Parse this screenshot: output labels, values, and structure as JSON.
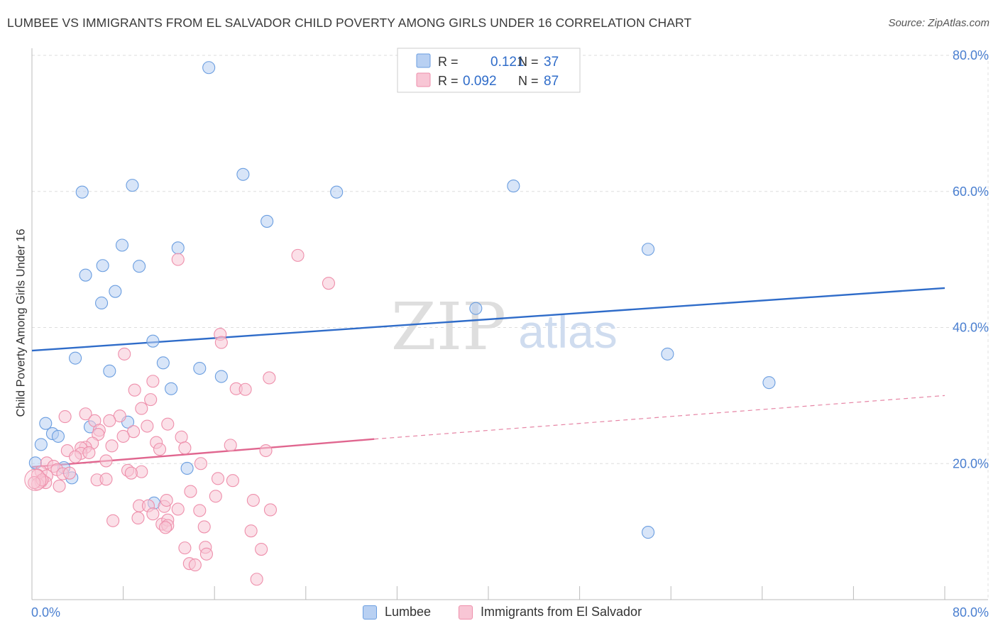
{
  "title": "LUMBEE VS IMMIGRANTS FROM EL SALVADOR CHILD POVERTY AMONG GIRLS UNDER 16 CORRELATION CHART",
  "source": "Source: ZipAtlas.com",
  "watermark": {
    "zip": "ZIP",
    "atlas": "atlas"
  },
  "chart_data": {
    "type": "scatter",
    "title": "LUMBEE VS IMMIGRANTS FROM EL SALVADOR CHILD POVERTY AMONG GIRLS UNDER 16 CORRELATION CHART",
    "xlabel": "",
    "ylabel": "Child Poverty Among Girls Under 16",
    "xlim": [
      0,
      80
    ],
    "ylim": [
      0,
      80
    ],
    "x_tick_labels": [
      "0.0%",
      "80.0%"
    ],
    "y_tick_labels": [
      "80.0%",
      "60.0%",
      "40.0%",
      "20.0%"
    ],
    "y_ticks": [
      80,
      60,
      40,
      20
    ],
    "grid": true,
    "legend_position": "top-center",
    "stats": [
      {
        "r_label": "R =",
        "r_value": "0.121",
        "n_label": "N =",
        "n_value": "37"
      },
      {
        "r_label": "R =",
        "r_value": "0.092",
        "n_label": "N =",
        "n_value": "87"
      }
    ],
    "series": [
      {
        "name": "Lumbee",
        "color": "#6b9ee0",
        "fill": "#b8d0f2",
        "trend": {
          "x": [
            0,
            80
          ],
          "y": [
            36.6,
            45.8
          ],
          "style": "solid",
          "color": "#2f6cc9"
        },
        "points": [
          [
            15.5,
            78.2
          ],
          [
            4.4,
            59.9
          ],
          [
            8.8,
            60.9
          ],
          [
            18.5,
            62.5
          ],
          [
            26.7,
            59.9
          ],
          [
            42.2,
            60.8
          ],
          [
            20.6,
            55.6
          ],
          [
            7.9,
            52.1
          ],
          [
            12.8,
            51.7
          ],
          [
            9.4,
            49.0
          ],
          [
            6.2,
            49.1
          ],
          [
            4.7,
            47.7
          ],
          [
            7.3,
            45.3
          ],
          [
            6.1,
            43.6
          ],
          [
            54.0,
            51.5
          ],
          [
            38.9,
            42.8
          ],
          [
            10.6,
            38.0
          ],
          [
            3.8,
            35.5
          ],
          [
            11.5,
            34.8
          ],
          [
            6.8,
            33.6
          ],
          [
            14.7,
            34.0
          ],
          [
            16.6,
            32.8
          ],
          [
            12.2,
            31.0
          ],
          [
            55.7,
            36.1
          ],
          [
            64.6,
            31.9
          ],
          [
            1.2,
            25.9
          ],
          [
            5.1,
            25.4
          ],
          [
            8.4,
            26.1
          ],
          [
            1.8,
            24.4
          ],
          [
            2.3,
            24.0
          ],
          [
            0.8,
            22.8
          ],
          [
            0.3,
            20.1
          ],
          [
            2.8,
            19.4
          ],
          [
            13.6,
            19.3
          ],
          [
            3.5,
            17.9
          ],
          [
            10.7,
            14.2
          ],
          [
            54.0,
            9.9
          ]
        ]
      },
      {
        "name": "Immigrants from El Salvador",
        "color": "#ee8fab",
        "fill": "#f8c6d5",
        "trend": {
          "x": [
            0,
            30
          ],
          "y": [
            19.5,
            23.6
          ],
          "style": "solid",
          "color": "#e0668f",
          "dashed_extension": {
            "x": [
              30,
              80
            ],
            "y": [
              23.6,
              30.0
            ]
          }
        },
        "points": [
          [
            23.3,
            50.6
          ],
          [
            12.8,
            50.0
          ],
          [
            26.0,
            46.5
          ],
          [
            16.5,
            39.0
          ],
          [
            16.6,
            37.8
          ],
          [
            8.1,
            36.1
          ],
          [
            20.8,
            32.6
          ],
          [
            10.6,
            32.1
          ],
          [
            17.9,
            31.0
          ],
          [
            18.7,
            30.9
          ],
          [
            9.0,
            30.8
          ],
          [
            10.4,
            29.4
          ],
          [
            9.6,
            28.1
          ],
          [
            2.9,
            26.9
          ],
          [
            4.7,
            27.3
          ],
          [
            7.7,
            27.0
          ],
          [
            5.5,
            26.3
          ],
          [
            6.8,
            26.3
          ],
          [
            10.1,
            25.5
          ],
          [
            11.9,
            25.8
          ],
          [
            5.9,
            24.9
          ],
          [
            8.9,
            24.7
          ],
          [
            5.8,
            24.3
          ],
          [
            8.0,
            24.0
          ],
          [
            13.1,
            23.9
          ],
          [
            10.9,
            23.1
          ],
          [
            5.3,
            23.0
          ],
          [
            7.0,
            22.6
          ],
          [
            4.7,
            22.4
          ],
          [
            4.3,
            22.3
          ],
          [
            13.4,
            22.3
          ],
          [
            17.4,
            22.7
          ],
          [
            20.5,
            21.9
          ],
          [
            3.1,
            21.9
          ],
          [
            11.2,
            22.1
          ],
          [
            4.3,
            21.5
          ],
          [
            5.0,
            21.6
          ],
          [
            3.8,
            21.0
          ],
          [
            6.5,
            20.4
          ],
          [
            14.8,
            20.0
          ],
          [
            1.3,
            20.1
          ],
          [
            1.9,
            19.6
          ],
          [
            2.2,
            19.1
          ],
          [
            8.4,
            19.0
          ],
          [
            9.6,
            18.8
          ],
          [
            0.8,
            18.8
          ],
          [
            2.7,
            18.5
          ],
          [
            0.5,
            18.3
          ],
          [
            1.3,
            18.2
          ],
          [
            3.3,
            18.6
          ],
          [
            8.7,
            18.6
          ],
          [
            16.3,
            17.8
          ],
          [
            17.6,
            17.5
          ],
          [
            5.7,
            17.6
          ],
          [
            6.5,
            17.7
          ],
          [
            0.8,
            17.3
          ],
          [
            1.2,
            17.2
          ],
          [
            0.5,
            17.0
          ],
          [
            0.9,
            17.6
          ],
          [
            2.4,
            16.7
          ],
          [
            13.9,
            15.9
          ],
          [
            16.1,
            15.2
          ],
          [
            9.4,
            13.8
          ],
          [
            10.2,
            13.8
          ],
          [
            11.6,
            13.7
          ],
          [
            11.8,
            14.6
          ],
          [
            12.8,
            13.3
          ],
          [
            14.7,
            13.1
          ],
          [
            19.4,
            14.6
          ],
          [
            20.9,
            13.2
          ],
          [
            9.3,
            12.0
          ],
          [
            10.6,
            12.6
          ],
          [
            11.4,
            11.1
          ],
          [
            11.9,
            11.7
          ],
          [
            7.1,
            11.6
          ],
          [
            11.9,
            10.9
          ],
          [
            11.7,
            10.6
          ],
          [
            15.1,
            10.7
          ],
          [
            19.2,
            10.1
          ],
          [
            13.4,
            7.6
          ],
          [
            15.2,
            7.7
          ],
          [
            20.1,
            7.4
          ],
          [
            15.3,
            6.7
          ],
          [
            13.8,
            5.3
          ],
          [
            14.3,
            5.1
          ],
          [
            19.7,
            3.0
          ],
          [
            0.2,
            17.2
          ]
        ]
      }
    ]
  }
}
